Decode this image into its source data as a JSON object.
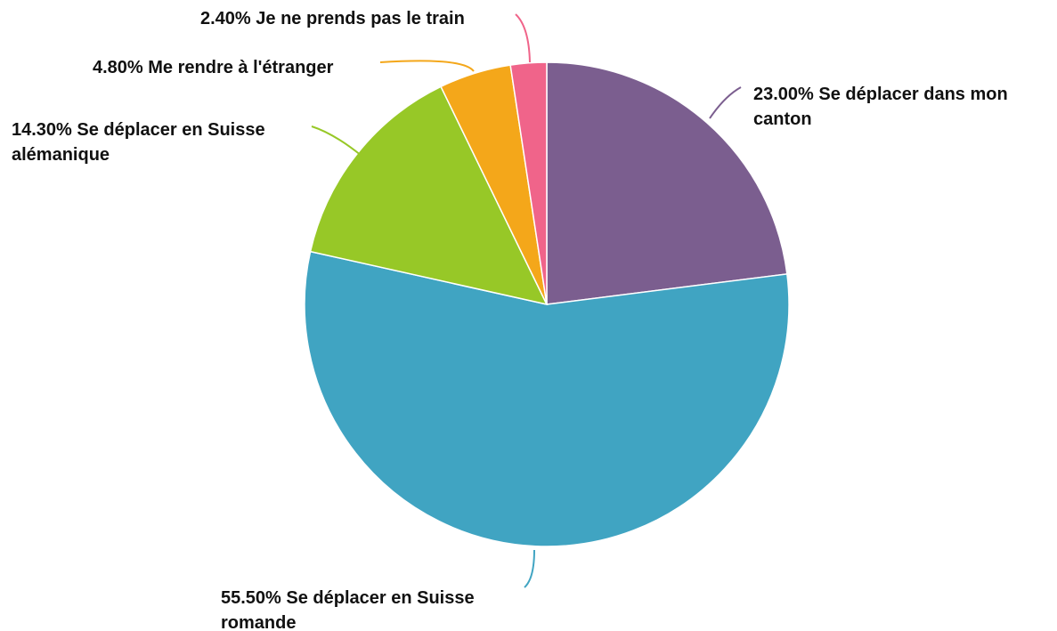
{
  "chart_data": {
    "type": "pie",
    "title": "",
    "slices": [
      {
        "label": "Se déplacer dans mon canton",
        "value": 23.0,
        "text": "23.00% Se déplacer dans mon canton",
        "color": "#7b5e8f"
      },
      {
        "label": "Se déplacer en Suisse romande",
        "value": 55.5,
        "text": "55.50% Se déplacer en Suisse romande",
        "color": "#40a4c2"
      },
      {
        "label": "Se déplacer en Suisse alémanique",
        "value": 14.3,
        "text": "14.30% Se déplacer en Suisse alémanique",
        "color": "#97c827"
      },
      {
        "label": "Me rendre à l'étranger",
        "value": 4.8,
        "text": "4.80% Me rendre à l'étranger",
        "color": "#f4a71a"
      },
      {
        "label": "Je ne prends pas le train",
        "value": 2.4,
        "text": "2.40% Je ne prends pas le train",
        "color": "#f0648a"
      }
    ],
    "legend": "none"
  }
}
